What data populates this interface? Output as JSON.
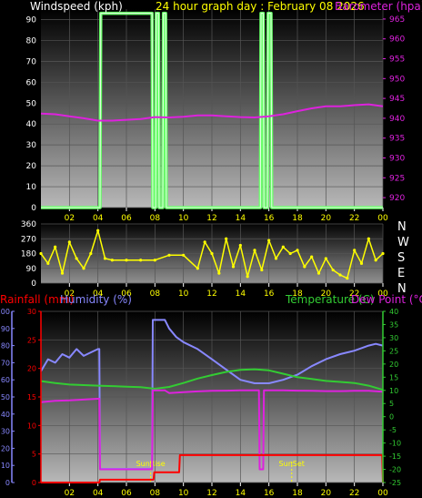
{
  "header": {
    "left_title": "Windspeed (kph)",
    "center_title": "24 hour graph day : February 08 2026",
    "right_title": "Barometer (hpa)"
  },
  "colors": {
    "background": "#000000",
    "axis_text_yellow": "#ffff00",
    "windspeed": "#66ff66",
    "windspeed_core": "#e8ffe8",
    "barometer": "#dd22dd",
    "direction": "#ffff00",
    "rainfall": "#ff0000",
    "humidity": "#8888ff",
    "temperature": "#33cc33",
    "dewpoint": "#dd22dd",
    "sun_marker": "#ffff00"
  },
  "x_ticks": [
    "02",
    "04",
    "06",
    "08",
    "10",
    "12",
    "14",
    "16",
    "18",
    "20",
    "22",
    "00"
  ],
  "compass": {
    "letters": [
      "N",
      "W",
      "S",
      "E",
      "N"
    ]
  },
  "bottom_panel": {
    "rain_title": "Rainfall (mm)",
    "humidity_title": "Humidity (%)",
    "temp_title": "Temperature (C)",
    "dew_title": "Dew Point (°C)",
    "sunrise_label": "SunRise",
    "sunset_label": "SunSet"
  },
  "chart_data": [
    {
      "type": "line",
      "x_unit": "hour",
      "xlim": [
        0,
        24
      ],
      "ylim": [
        0,
        95
      ],
      "y_ticks": [
        0,
        10,
        20,
        30,
        40,
        50,
        60,
        70,
        80,
        90
      ],
      "y2lim": [
        917.5,
        967.5
      ],
      "y2_ticks": [
        920,
        925,
        930,
        935,
        940,
        945,
        950,
        955,
        960,
        965
      ],
      "grid": true,
      "series": [
        {
          "name": "Windspeed (kph)",
          "axis": "left",
          "x": [
            0,
            4.15,
            4.2,
            7.8,
            7.85,
            8.05,
            8.1,
            8.25,
            8.3,
            8.55,
            8.6,
            8.75,
            8.8,
            15.4,
            15.45,
            15.6,
            15.65,
            15.9,
            15.95,
            16.15,
            16.2,
            24
          ],
          "y": [
            0,
            0,
            93,
            93,
            0,
            0,
            93,
            93,
            0,
            0,
            93,
            93,
            0,
            0,
            93,
            93,
            0,
            0,
            93,
            93,
            0,
            0
          ]
        },
        {
          "name": "Barometer (hpa)",
          "axis": "right",
          "x": [
            0,
            1,
            2,
            3,
            4,
            5,
            6,
            7,
            8,
            9,
            10,
            11,
            12,
            13,
            14,
            15,
            16,
            17,
            18,
            19,
            20,
            21,
            22,
            23,
            24
          ],
          "y": [
            941.2,
            941.0,
            940.5,
            940.0,
            939.4,
            939.4,
            939.6,
            939.8,
            940.3,
            940.2,
            940.4,
            940.7,
            940.7,
            940.5,
            940.3,
            940.2,
            940.5,
            941.0,
            941.8,
            942.5,
            943.0,
            943.0,
            943.3,
            943.5,
            943.0
          ]
        }
      ]
    },
    {
      "type": "scatter",
      "title": "",
      "x_unit": "hour",
      "xlim": [
        0,
        24
      ],
      "ylim": [
        0,
        360
      ],
      "y_ticks": [
        0,
        90,
        180,
        270,
        360
      ],
      "y_tick_labels": [
        "0",
        "90",
        "180",
        "270",
        "360"
      ],
      "series": [
        {
          "name": "",
          "note_values": "direction degrees, hourly samples",
          "x": [
            0,
            0.5,
            1,
            1.5,
            2,
            2.5,
            3,
            3.5,
            4,
            4.5,
            5,
            6,
            7,
            8,
            9,
            10,
            11,
            11.5,
            12,
            12.5,
            13,
            13.5,
            14,
            14.5,
            15,
            15.5,
            16,
            16.5,
            17,
            17.5,
            18,
            18.5,
            19,
            19.5,
            20,
            20.5,
            21,
            21.5,
            22,
            22.5,
            23,
            23.5,
            24
          ],
          "y": [
            180,
            120,
            220,
            60,
            250,
            150,
            90,
            180,
            320,
            150,
            140,
            140,
            140,
            140,
            170,
            170,
            90,
            250,
            180,
            60,
            270,
            100,
            230,
            40,
            200,
            80,
            260,
            150,
            220,
            180,
            200,
            100,
            160,
            60,
            150,
            80,
            50,
            30,
            200,
            120,
            270,
            140,
            180
          ]
        }
      ]
    },
    {
      "type": "line",
      "x_unit": "hour",
      "xlim": [
        0,
        24
      ],
      "rain_ylim": [
        0,
        30
      ],
      "rain_y_ticks": [
        0,
        5,
        10,
        15,
        20,
        25,
        30
      ],
      "humidity_ylim": [
        0,
        100
      ],
      "humidity_y_ticks": [
        0,
        10,
        20,
        30,
        40,
        50,
        60,
        70,
        80,
        90,
        100
      ],
      "temp_ylim": [
        -25,
        40
      ],
      "temp_y_ticks": [
        -25,
        -20,
        -15,
        -10,
        -5,
        0,
        5,
        10,
        15,
        20,
        25,
        30,
        35,
        40
      ],
      "grid": true,
      "series": [
        {
          "name": "Rainfall (mm)",
          "axis": "rain",
          "x": [
            0,
            4.1,
            4.15,
            7.9,
            7.95,
            9.7,
            9.75,
            23.95,
            24
          ],
          "y": [
            0,
            0,
            0.5,
            0.5,
            1.8,
            1.8,
            4.8,
            4.8,
            0
          ]
        },
        {
          "name": "Humidity (%)",
          "axis": "humidity",
          "x": [
            0,
            0.5,
            1,
            1.5,
            2,
            2.5,
            3,
            3.5,
            4,
            4.1,
            4.15,
            7.8,
            7.85,
            8.7,
            9,
            9.5,
            10,
            11,
            12,
            13,
            14,
            15,
            16,
            17,
            18,
            19,
            20,
            21,
            22,
            23,
            23.5,
            24
          ],
          "y": [
            65,
            72,
            70,
            75,
            73,
            78,
            74,
            76,
            78,
            78,
            8,
            8,
            95,
            95,
            90,
            85,
            82,
            78,
            72,
            66,
            60,
            58,
            58,
            60,
            63,
            68,
            72,
            75,
            77,
            80,
            81,
            80
          ],
          "x_trend": [
            0,
            1,
            2,
            3,
            4
          ]
        },
        {
          "name": "Temperature (C)",
          "axis": "temp",
          "x": [
            0,
            1,
            2,
            3,
            4,
            5,
            6,
            7,
            8,
            9,
            10,
            11,
            12,
            13,
            14,
            15,
            16,
            17,
            18,
            19,
            20,
            21,
            22,
            23,
            24
          ],
          "y": [
            13.5,
            12.8,
            12.2,
            12.0,
            11.8,
            11.6,
            11.4,
            11.2,
            10.6,
            11.3,
            12.8,
            14.5,
            15.8,
            17.0,
            17.8,
            18.0,
            17.6,
            16.3,
            15.0,
            14.3,
            13.6,
            13.2,
            12.8,
            11.8,
            10.2
          ]
        },
        {
          "name": "Dew Point (°C)",
          "axis": "temp",
          "x": [
            0,
            1,
            2,
            3,
            4,
            4.1,
            4.15,
            7.8,
            7.85,
            8.7,
            9,
            10,
            11,
            12,
            13,
            14,
            15,
            15.3,
            15.35,
            15.6,
            15.65,
            16,
            17,
            18,
            19,
            20,
            21,
            22,
            23,
            24
          ],
          "y": [
            5.5,
            6.0,
            6.2,
            6.5,
            6.8,
            6.8,
            -20,
            -20,
            10,
            10,
            9,
            9.3,
            9.6,
            9.8,
            9.9,
            10.0,
            10.0,
            10.0,
            -20,
            -20,
            10,
            10,
            10.0,
            9.9,
            9.8,
            9.7,
            9.7,
            9.8,
            9.8,
            9.5
          ]
        }
      ],
      "markers": [
        {
          "label": "SunRise",
          "x": 7.7
        },
        {
          "label": "SunSet",
          "x": 17.6
        }
      ]
    }
  ]
}
